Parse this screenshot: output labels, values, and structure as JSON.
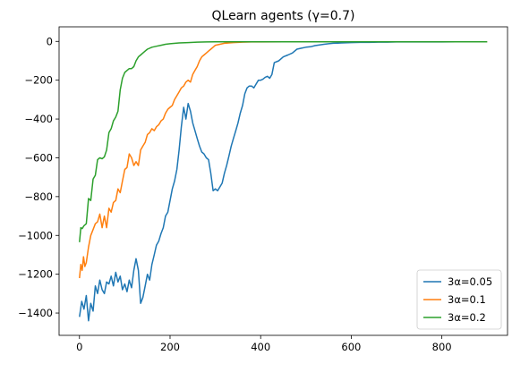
{
  "chart_data": {
    "type": "line",
    "title": "QLearn agents (γ=0.7)",
    "xlabel": "",
    "ylabel": "",
    "xlim": [
      -45,
      945
    ],
    "ylim": [
      -1515,
      75
    ],
    "xticks": [
      0,
      200,
      400,
      600,
      800
    ],
    "yticks": [
      0,
      -200,
      -400,
      -600,
      -800,
      -1000,
      -1200,
      -1400
    ],
    "grid": false,
    "legend_position": "lower-right",
    "series": [
      {
        "name": "3α=0.05",
        "color": "#1f77b4",
        "x": [
          0,
          5,
          10,
          15,
          20,
          25,
          30,
          35,
          40,
          45,
          50,
          55,
          60,
          65,
          70,
          75,
          80,
          85,
          90,
          95,
          100,
          105,
          110,
          115,
          120,
          125,
          130,
          135,
          140,
          145,
          150,
          155,
          160,
          165,
          170,
          175,
          180,
          185,
          190,
          195,
          200,
          205,
          210,
          215,
          220,
          225,
          230,
          235,
          240,
          245,
          250,
          255,
          260,
          265,
          270,
          275,
          280,
          285,
          290,
          295,
          300,
          305,
          310,
          315,
          320,
          325,
          330,
          335,
          340,
          345,
          350,
          355,
          360,
          365,
          370,
          375,
          380,
          385,
          390,
          395,
          400,
          405,
          410,
          415,
          420,
          425,
          430,
          440,
          450,
          460,
          470,
          480,
          490,
          500,
          510,
          520,
          530,
          540,
          550,
          560,
          570,
          580,
          600,
          620,
          640,
          660,
          680,
          700,
          750,
          800,
          850,
          900
        ],
        "y": [
          -1420,
          -1340,
          -1380,
          -1310,
          -1440,
          -1350,
          -1390,
          -1260,
          -1300,
          -1230,
          -1280,
          -1300,
          -1240,
          -1250,
          -1210,
          -1260,
          -1190,
          -1240,
          -1210,
          -1280,
          -1250,
          -1290,
          -1230,
          -1270,
          -1180,
          -1120,
          -1180,
          -1350,
          -1320,
          -1260,
          -1200,
          -1230,
          -1150,
          -1100,
          -1050,
          -1030,
          -990,
          -960,
          -900,
          -880,
          -820,
          -760,
          -720,
          -660,
          -560,
          -440,
          -340,
          -400,
          -320,
          -360,
          -420,
          -460,
          -500,
          -540,
          -570,
          -580,
          -600,
          -610,
          -680,
          -770,
          -760,
          -770,
          -750,
          -730,
          -680,
          -640,
          -590,
          -540,
          -500,
          -460,
          -420,
          -370,
          -330,
          -270,
          -240,
          -230,
          -230,
          -240,
          -220,
          -200,
          -200,
          -195,
          -185,
          -180,
          -190,
          -170,
          -110,
          -100,
          -80,
          -70,
          -60,
          -40,
          -35,
          -30,
          -28,
          -22,
          -18,
          -15,
          -12,
          -10,
          -9,
          -8,
          -6,
          -5,
          -5,
          -4,
          -4,
          -3,
          -3,
          -3,
          -2,
          -2
        ]
      },
      {
        "name": "3α=0.1",
        "color": "#ff7f0e",
        "x": [
          0,
          3,
          6,
          9,
          12,
          15,
          20,
          25,
          30,
          35,
          40,
          45,
          50,
          55,
          60,
          65,
          70,
          75,
          80,
          85,
          90,
          95,
          100,
          105,
          110,
          115,
          120,
          125,
          130,
          135,
          140,
          145,
          150,
          155,
          160,
          165,
          170,
          175,
          180,
          185,
          190,
          195,
          200,
          205,
          210,
          215,
          220,
          225,
          230,
          235,
          240,
          245,
          250,
          255,
          260,
          265,
          270,
          275,
          280,
          285,
          290,
          295,
          300,
          310,
          320,
          330,
          340,
          350,
          360,
          380,
          400,
          450,
          500,
          600,
          700,
          800,
          900
        ],
        "y": [
          -1220,
          -1150,
          -1180,
          -1110,
          -1160,
          -1140,
          -1060,
          -1000,
          -970,
          -940,
          -930,
          -890,
          -960,
          -900,
          -960,
          -860,
          -880,
          -830,
          -820,
          -760,
          -780,
          -720,
          -660,
          -650,
          -580,
          -600,
          -640,
          -620,
          -640,
          -560,
          -540,
          -520,
          -480,
          -470,
          -450,
          -460,
          -440,
          -430,
          -410,
          -400,
          -370,
          -350,
          -340,
          -330,
          -300,
          -280,
          -260,
          -240,
          -230,
          -210,
          -200,
          -210,
          -170,
          -150,
          -130,
          -100,
          -80,
          -70,
          -60,
          -50,
          -40,
          -30,
          -20,
          -15,
          -10,
          -8,
          -6,
          -5,
          -4,
          -3,
          -3,
          -2,
          -2,
          -2,
          -2,
          -2,
          -2
        ]
      },
      {
        "name": "3α=0.2",
        "color": "#2ca02c",
        "x": [
          0,
          3,
          6,
          10,
          15,
          20,
          25,
          30,
          35,
          40,
          45,
          50,
          55,
          60,
          65,
          70,
          75,
          80,
          85,
          90,
          95,
          100,
          105,
          110,
          115,
          120,
          125,
          130,
          135,
          140,
          145,
          150,
          160,
          170,
          180,
          190,
          200,
          220,
          240,
          260,
          280,
          300,
          350,
          400,
          500,
          600,
          700,
          800,
          900
        ],
        "y": [
          -1035,
          -960,
          -965,
          -950,
          -940,
          -810,
          -820,
          -710,
          -690,
          -610,
          -600,
          -605,
          -595,
          -560,
          -470,
          -450,
          -410,
          -390,
          -360,
          -250,
          -190,
          -160,
          -150,
          -140,
          -140,
          -130,
          -100,
          -80,
          -70,
          -60,
          -50,
          -40,
          -30,
          -25,
          -20,
          -15,
          -12,
          -8,
          -6,
          -4,
          -3,
          -2,
          -2,
          -2,
          -2,
          -2,
          -2,
          -2,
          -2
        ]
      }
    ]
  }
}
